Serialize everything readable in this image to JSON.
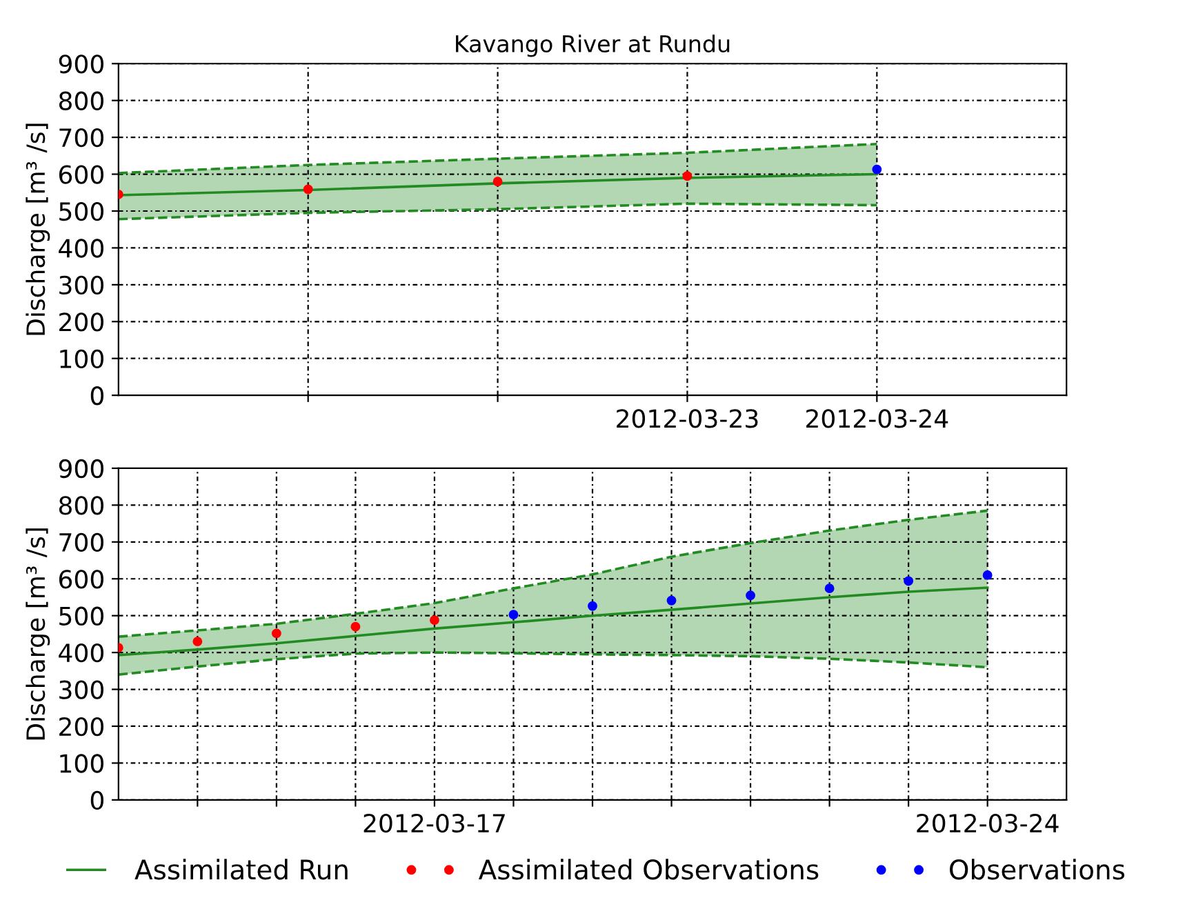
{
  "chart_data": [
    {
      "type": "line",
      "title": "Kavango River at Rundu",
      "ylabel": "Discharge [m³ /s]",
      "xlim": [
        "2012-03-20",
        "2012-03-25"
      ],
      "xticks": [
        {
          "value": "2012-03-21",
          "label": null
        },
        {
          "value": "2012-03-22",
          "label": null
        },
        {
          "value": "2012-03-23",
          "label": "2012-03-23"
        },
        {
          "value": "2012-03-24",
          "label": "2012-03-24"
        }
      ],
      "ylim": [
        0,
        900
      ],
      "yticks": [
        0,
        100,
        200,
        300,
        400,
        500,
        600,
        700,
        800,
        900
      ],
      "grid": true,
      "series": [
        {
          "color": "#228b22",
          "marker": "none",
          "line_style": "solid",
          "x": [
            "2012-03-20",
            "2012-03-21",
            "2012-03-22",
            "2012-03-23",
            "2012-03-24"
          ],
          "values": [
            543,
            557,
            575,
            590,
            600
          ],
          "lower": [
            478,
            495,
            505,
            520,
            516
          ],
          "upper": [
            603,
            625,
            642,
            658,
            682
          ]
        },
        {
          "color": "#228b22",
          "marker": "none",
          "line_style": "dashed",
          "x": [
            "2012-03-20",
            "2012-03-21",
            "2012-03-22",
            "2012-03-23",
            "2012-03-24"
          ],
          "values": [
            478,
            495,
            505,
            520,
            516
          ]
        },
        {
          "color": "#228b22",
          "marker": "none",
          "line_style": "dashed",
          "x": [
            "2012-03-20",
            "2012-03-21",
            "2012-03-22",
            "2012-03-23",
            "2012-03-24"
          ],
          "values": [
            603,
            625,
            642,
            658,
            682
          ]
        },
        {
          "type": "scatter",
          "color": "#ff0000",
          "marker": "circle",
          "x": [
            "2012-03-20",
            "2012-03-21",
            "2012-03-22",
            "2012-03-23"
          ],
          "values": [
            545,
            559,
            580,
            595
          ]
        },
        {
          "type": "scatter",
          "color": "#0000ff",
          "marker": "circle",
          "x": [
            "2012-03-24"
          ],
          "values": [
            613
          ]
        }
      ]
    },
    {
      "type": "line",
      "ylabel": "Discharge [m³ /s]",
      "xlim": [
        "2012-03-13",
        "2012-03-25"
      ],
      "xticks": [
        {
          "value": "2012-03-14",
          "label": null
        },
        {
          "value": "2012-03-15",
          "label": null
        },
        {
          "value": "2012-03-16",
          "label": null
        },
        {
          "value": "2012-03-17",
          "label": "2012-03-17"
        },
        {
          "value": "2012-03-18",
          "label": null
        },
        {
          "value": "2012-03-19",
          "label": null
        },
        {
          "value": "2012-03-20",
          "label": null
        },
        {
          "value": "2012-03-21",
          "label": null
        },
        {
          "value": "2012-03-22",
          "label": null
        },
        {
          "value": "2012-03-23",
          "label": null
        },
        {
          "value": "2012-03-24",
          "label": "2012-03-24"
        }
      ],
      "ylim": [
        0,
        900
      ],
      "yticks": [
        0,
        100,
        200,
        300,
        400,
        500,
        600,
        700,
        800,
        900
      ],
      "grid": true,
      "legend": "bottom",
      "series": [
        {
          "name": "Assimilated Run",
          "color": "#228b22",
          "marker": "none",
          "line_style": "solid",
          "x": [
            "2012-03-13",
            "2012-03-14",
            "2012-03-15",
            "2012-03-16",
            "2012-03-17",
            "2012-03-18",
            "2012-03-19",
            "2012-03-20",
            "2012-03-21",
            "2012-03-22",
            "2012-03-23",
            "2012-03-24"
          ],
          "values": [
            393,
            408,
            425,
            445,
            465,
            482,
            500,
            516,
            533,
            550,
            565,
            576
          ],
          "lower": [
            340,
            362,
            382,
            397,
            400,
            398,
            395,
            393,
            390,
            383,
            373,
            360
          ],
          "upper": [
            443,
            460,
            478,
            505,
            534,
            574,
            612,
            660,
            697,
            731,
            760,
            785
          ]
        },
        {
          "color": "#228b22",
          "marker": "none",
          "line_style": "dashed",
          "x": [
            "2012-03-13",
            "2012-03-14",
            "2012-03-15",
            "2012-03-16",
            "2012-03-17",
            "2012-03-18",
            "2012-03-19",
            "2012-03-20",
            "2012-03-21",
            "2012-03-22",
            "2012-03-23",
            "2012-03-24"
          ],
          "values": [
            340,
            362,
            382,
            397,
            400,
            398,
            395,
            393,
            390,
            383,
            373,
            360
          ]
        },
        {
          "color": "#228b22",
          "marker": "none",
          "line_style": "dashed",
          "x": [
            "2012-03-13",
            "2012-03-14",
            "2012-03-15",
            "2012-03-16",
            "2012-03-17",
            "2012-03-18",
            "2012-03-19",
            "2012-03-20",
            "2012-03-21",
            "2012-03-22",
            "2012-03-23",
            "2012-03-24"
          ],
          "values": [
            443,
            460,
            478,
            505,
            534,
            574,
            612,
            660,
            697,
            731,
            760,
            785
          ]
        },
        {
          "name": "Assimilated Observations",
          "type": "scatter",
          "color": "#ff0000",
          "marker": "circle",
          "x": [
            "2012-03-13",
            "2012-03-14",
            "2012-03-15",
            "2012-03-16",
            "2012-03-17"
          ],
          "values": [
            413,
            430,
            452,
            470,
            488
          ]
        },
        {
          "name": "Observations",
          "type": "scatter",
          "color": "#0000ff",
          "marker": "circle",
          "x": [
            "2012-03-18",
            "2012-03-19",
            "2012-03-20",
            "2012-03-21",
            "2012-03-22",
            "2012-03-23",
            "2012-03-24"
          ],
          "values": [
            503,
            526,
            541,
            555,
            574,
            594,
            610
          ]
        }
      ]
    }
  ]
}
